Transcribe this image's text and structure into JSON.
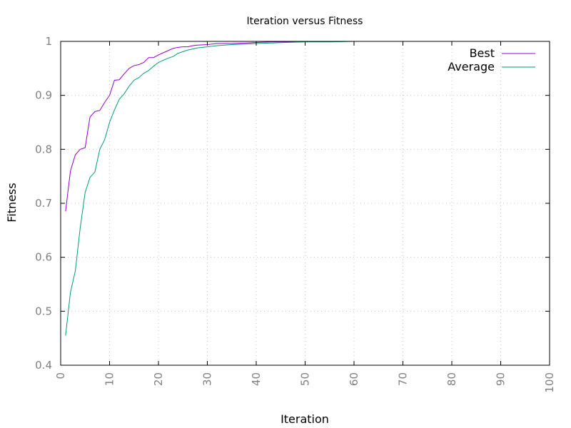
{
  "chart_data": {
    "type": "line",
    "title": "Iteration versus Fitness",
    "xlabel": "Iteration",
    "ylabel": "Fitness",
    "xlim": [
      0,
      100
    ],
    "ylim": [
      0.4,
      1
    ],
    "xticks": [
      "0",
      "10",
      "20",
      "30",
      "40",
      "50",
      "60",
      "70",
      "80",
      "90",
      "100"
    ],
    "yticks": [
      "0.4",
      "0.5",
      "0.6",
      "0.7",
      "0.8",
      "0.9",
      "1"
    ],
    "grid": true,
    "legend_position": "top-right",
    "series": [
      {
        "name": "Best",
        "color": "#9400d3",
        "points": [
          [
            1,
            0.685
          ],
          [
            2,
            0.76
          ],
          [
            3,
            0.79
          ],
          [
            4,
            0.8
          ],
          [
            5,
            0.803
          ],
          [
            6,
            0.86
          ],
          [
            7,
            0.87
          ],
          [
            8,
            0.872
          ],
          [
            9,
            0.887
          ],
          [
            10,
            0.9
          ],
          [
            11,
            0.928
          ],
          [
            12,
            0.929
          ],
          [
            13,
            0.94
          ],
          [
            14,
            0.95
          ],
          [
            15,
            0.955
          ],
          [
            16,
            0.957
          ],
          [
            17,
            0.961
          ],
          [
            18,
            0.97
          ],
          [
            19,
            0.97
          ],
          [
            20,
            0.975
          ],
          [
            21,
            0.979
          ],
          [
            22,
            0.983
          ],
          [
            23,
            0.987
          ],
          [
            24,
            0.989
          ],
          [
            25,
            0.99
          ],
          [
            26,
            0.99
          ],
          [
            27,
            0.992
          ],
          [
            28,
            0.993
          ],
          [
            30,
            0.994
          ],
          [
            32,
            0.996
          ],
          [
            35,
            0.996
          ],
          [
            38,
            0.997
          ],
          [
            40,
            0.998
          ],
          [
            43,
            0.999
          ],
          [
            46,
            0.999
          ],
          [
            50,
            1.0
          ],
          [
            55,
            1.0
          ],
          [
            60,
            1.0
          ],
          [
            65,
            1.0
          ],
          [
            70,
            1.0
          ],
          [
            75,
            1.0
          ],
          [
            80,
            1.0
          ],
          [
            85,
            1.0
          ],
          [
            90,
            1.0
          ],
          [
            95,
            1.0
          ],
          [
            99,
            1.0
          ]
        ]
      },
      {
        "name": "Average",
        "color": "#009e73",
        "points": [
          [
            1,
            0.455
          ],
          [
            2,
            0.535
          ],
          [
            3,
            0.575
          ],
          [
            4,
            0.655
          ],
          [
            5,
            0.72
          ],
          [
            6,
            0.748
          ],
          [
            7,
            0.758
          ],
          [
            8,
            0.8
          ],
          [
            9,
            0.818
          ],
          [
            10,
            0.85
          ],
          [
            11,
            0.873
          ],
          [
            12,
            0.893
          ],
          [
            13,
            0.903
          ],
          [
            14,
            0.917
          ],
          [
            15,
            0.928
          ],
          [
            16,
            0.933
          ],
          [
            17,
            0.941
          ],
          [
            18,
            0.946
          ],
          [
            19,
            0.954
          ],
          [
            20,
            0.961
          ],
          [
            21,
            0.965
          ],
          [
            22,
            0.969
          ],
          [
            23,
            0.972
          ],
          [
            24,
            0.978
          ],
          [
            25,
            0.981
          ],
          [
            26,
            0.984
          ],
          [
            27,
            0.986
          ],
          [
            28,
            0.988
          ],
          [
            30,
            0.99
          ],
          [
            32,
            0.992
          ],
          [
            35,
            0.994
          ],
          [
            38,
            0.995
          ],
          [
            40,
            0.996
          ],
          [
            43,
            0.997
          ],
          [
            46,
            0.998
          ],
          [
            50,
            0.999
          ],
          [
            55,
            0.999
          ],
          [
            60,
            1.0
          ],
          [
            65,
            1.0
          ],
          [
            70,
            1.0
          ],
          [
            75,
            1.0
          ],
          [
            80,
            1.0
          ],
          [
            85,
            1.0
          ],
          [
            90,
            1.0
          ],
          [
            95,
            1.0
          ],
          [
            99,
            1.0
          ]
        ]
      }
    ]
  }
}
